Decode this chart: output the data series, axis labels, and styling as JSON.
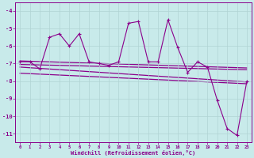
{
  "title": "",
  "xlabel": "Windchill (Refroidissement éolien,°C)",
  "ylabel": "",
  "bg_color": "#c8eaea",
  "line_color": "#8b008b",
  "grid_color": "#b0d4d4",
  "xlim": [
    -0.5,
    23.5
  ],
  "ylim": [
    -11.5,
    -3.5
  ],
  "yticks": [
    -11,
    -10,
    -9,
    -8,
    -7,
    -6,
    -5,
    -4
  ],
  "xticks": [
    0,
    1,
    2,
    3,
    4,
    5,
    6,
    7,
    8,
    9,
    10,
    11,
    12,
    13,
    14,
    15,
    16,
    17,
    18,
    19,
    20,
    21,
    22,
    23
  ],
  "main_y": [
    -6.9,
    -6.9,
    -7.3,
    -5.5,
    -5.3,
    -6.0,
    -5.3,
    -6.9,
    -7.0,
    -7.1,
    -6.9,
    -4.7,
    -4.6,
    -6.9,
    -6.9,
    -4.5,
    -6.1,
    -7.5,
    -6.9,
    -7.2,
    -9.1,
    -10.7,
    -11.1,
    -8.0
  ],
  "trend_lines": [
    {
      "x0": 0,
      "y0": -6.85,
      "x1": 23,
      "y1": -7.25
    },
    {
      "x0": 0,
      "y0": -7.05,
      "x1": 23,
      "y1": -7.35
    },
    {
      "x0": 0,
      "y0": -7.2,
      "x1": 23,
      "y1": -8.05
    },
    {
      "x0": 0,
      "y0": -7.55,
      "x1": 23,
      "y1": -8.15
    }
  ]
}
